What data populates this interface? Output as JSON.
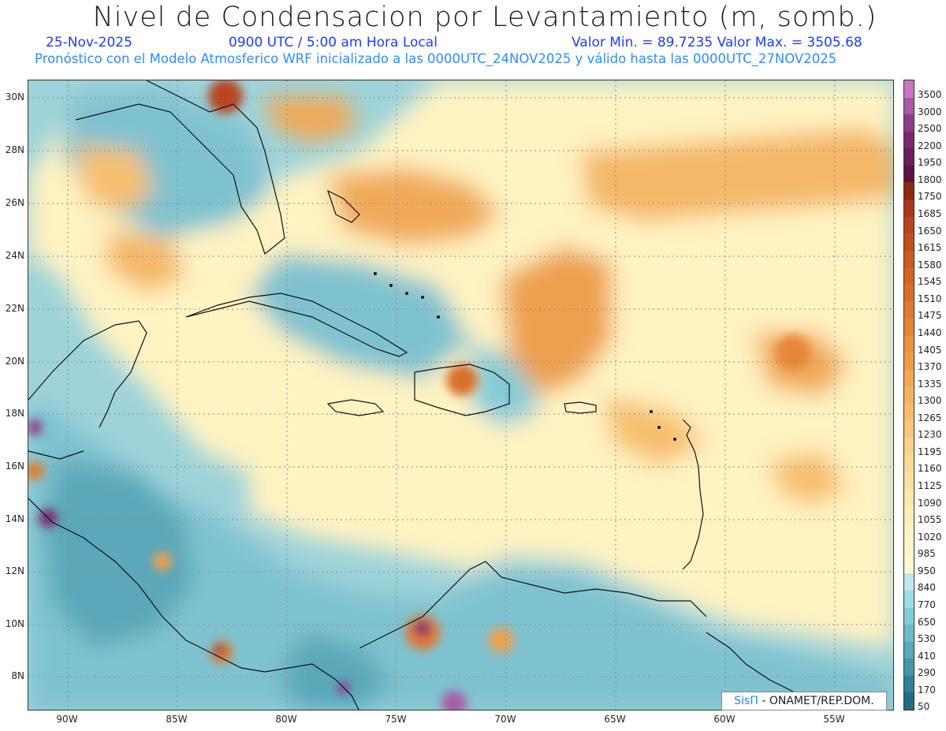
{
  "title": "Nivel de Condensacion por Levantamiento (m, somb.)",
  "date": "25-Nov-2025",
  "time": "0900 UTC / 5:00 am Hora Local",
  "minmax": "Valor Min. = 89.7235   Valor Max. = 3505.68",
  "forecast": "Pronóstico con el Modelo Atmosferico WRF inicializado a las 0000UTC_24NOV2025 y válido hasta las  0000UTC_27NOV2025",
  "credit": {
    "brand": "SisΠ",
    "rest": " - ONAMET/REP.DOM."
  },
  "lat_labels": [
    "30N",
    "28N",
    "26N",
    "24N",
    "22N",
    "20N",
    "18N",
    "16N",
    "14N",
    "12N",
    "10N",
    "8N"
  ],
  "lon_labels": [
    "90W",
    "85W",
    "80W",
    "75W",
    "70W",
    "65W",
    "60W",
    "55W"
  ],
  "colorbar": {
    "labels": [
      "3500",
      "3000",
      "2500",
      "2200",
      "1950",
      "1800",
      "1750",
      "1685",
      "1650",
      "1615",
      "1580",
      "1545",
      "1510",
      "1475",
      "1440",
      "1405",
      "1370",
      "1335",
      "1300",
      "1265",
      "1230",
      "1195",
      "1160",
      "1125",
      "1090",
      "1055",
      "1020",
      "985",
      "950",
      "840",
      "770",
      "650",
      "530",
      "410",
      "290",
      "170",
      "50"
    ],
    "colors": [
      "#c878c0",
      "#a85aa4",
      "#8c3c8c",
      "#7a2870",
      "#6a1e5a",
      "#5a1440",
      "#8a2a14",
      "#a8381c",
      "#b84420",
      "#c24e20",
      "#cc5a22",
      "#d46428",
      "#da6e2c",
      "#e07a30",
      "#e68638",
      "#ea9240",
      "#ee9c48",
      "#f2a854",
      "#f4b262",
      "#f6bc70",
      "#f8c67e",
      "#f9d08c",
      "#fad898",
      "#fbe0a4",
      "#fce8ae",
      "#fdeeb8",
      "#fef2c2",
      "#fff4c8",
      "#fff8d0",
      "#bfe8ec",
      "#9edbe2",
      "#86ccd6",
      "#6fbac8",
      "#5aa8ba",
      "#4694aa",
      "#347e98",
      "#266a86"
    ]
  }
}
